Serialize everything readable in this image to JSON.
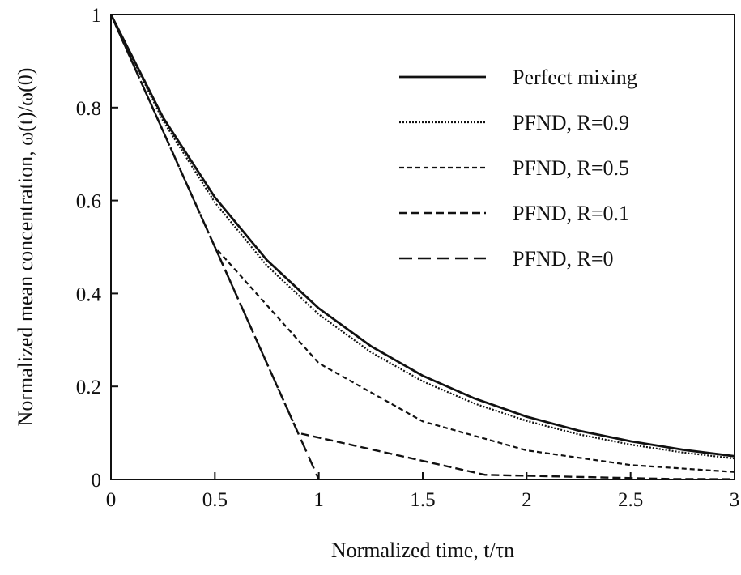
{
  "chart_data": {
    "type": "line",
    "title": "",
    "xlabel": "Normalized time, t/τn",
    "ylabel": "Normalized mean concentration, ω(t)/ω(0)",
    "xlim": [
      0,
      3
    ],
    "ylim": [
      0,
      1
    ],
    "xticks": [
      {
        "value": 0,
        "label": "0"
      },
      {
        "value": 0.5,
        "label": "0.5"
      },
      {
        "value": 1,
        "label": "1"
      },
      {
        "value": 1.5,
        "label": "1.5"
      },
      {
        "value": 2,
        "label": "2"
      },
      {
        "value": 2.5,
        "label": "2.5"
      },
      {
        "value": 3,
        "label": "3"
      }
    ],
    "yticks": [
      {
        "value": 0,
        "label": "0"
      },
      {
        "value": 0.2,
        "label": "0.2"
      },
      {
        "value": 0.4,
        "label": "0.4"
      },
      {
        "value": 0.6,
        "label": "0.6"
      },
      {
        "value": 0.8,
        "label": "0.8"
      },
      {
        "value": 1,
        "label": "1"
      }
    ],
    "grid": false,
    "legend_position": "top-right",
    "series": [
      {
        "name": "Perfect mixing",
        "style": "solid",
        "x": [
          0,
          0.25,
          0.5,
          0.75,
          1,
          1.25,
          1.5,
          1.75,
          2,
          2.25,
          2.5,
          2.75,
          3
        ],
        "y": [
          1,
          0.779,
          0.607,
          0.472,
          0.368,
          0.287,
          0.223,
          0.174,
          0.135,
          0.105,
          0.082,
          0.064,
          0.05
        ]
      },
      {
        "name": "PFND, R=0.9",
        "style": "dotted",
        "x": [
          0,
          0.25,
          0.5,
          0.75,
          1,
          1.25,
          1.5,
          1.75,
          2,
          2.25,
          2.5,
          2.75,
          3
        ],
        "y": [
          1,
          0.772,
          0.596,
          0.46,
          0.355,
          0.274,
          0.211,
          0.163,
          0.126,
          0.097,
          0.075,
          0.058,
          0.045
        ]
      },
      {
        "name": "PFND, R=0.5",
        "style": "short-dash",
        "x": [
          0,
          0.5,
          1,
          1.5,
          2,
          2.5,
          3
        ],
        "y": [
          1,
          0.5,
          0.25,
          0.125,
          0.0625,
          0.031,
          0.016
        ]
      },
      {
        "name": "PFND, R=0.1",
        "style": "medium-dash",
        "x": [
          0,
          0.9,
          1.8,
          2.7,
          3
        ],
        "y": [
          1,
          0.1,
          0.01,
          0.001,
          0.0007
        ]
      },
      {
        "name": "PFND, R=0",
        "style": "long-dash",
        "x": [
          0,
          1
        ],
        "y": [
          1,
          0
        ]
      }
    ]
  }
}
